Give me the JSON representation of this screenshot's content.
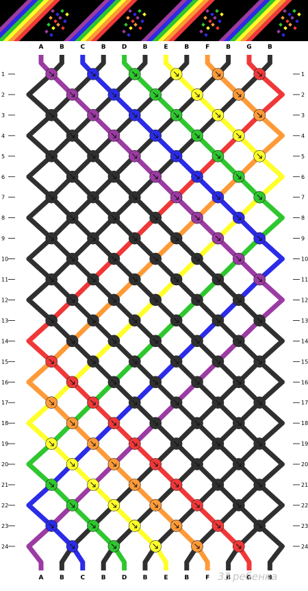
{
  "pattern": {
    "columns_top": [
      "A",
      "B",
      "C",
      "B",
      "D",
      "B",
      "E",
      "B",
      "F",
      "B",
      "G",
      "B"
    ],
    "columns_bottom": [
      "A",
      "B",
      "C",
      "B",
      "D",
      "B",
      "E",
      "B",
      "F",
      "B",
      "G",
      "B"
    ],
    "row_labels": [
      "1",
      "2",
      "3",
      "4",
      "5",
      "6",
      "7",
      "8",
      "9",
      "10",
      "11",
      "12",
      "13",
      "14",
      "15",
      "16",
      "17",
      "18",
      "19",
      "20",
      "21",
      "22",
      "23",
      "24"
    ],
    "strand_colors": {
      "A": "#9b3ba3",
      "B": "#303030",
      "C": "#2b2be8",
      "D": "#2fc72f",
      "E": "#ffff2a",
      "F": "#ff9a38",
      "G": "#f03838"
    },
    "rainbow_band": [
      "#9b3ba3",
      "#2b2be8",
      "#2fc72f",
      "#ffff2a",
      "#ff9a38",
      "#f03838"
    ]
  },
  "watermark": {
    "text": "ребенка",
    "number": "33"
  }
}
